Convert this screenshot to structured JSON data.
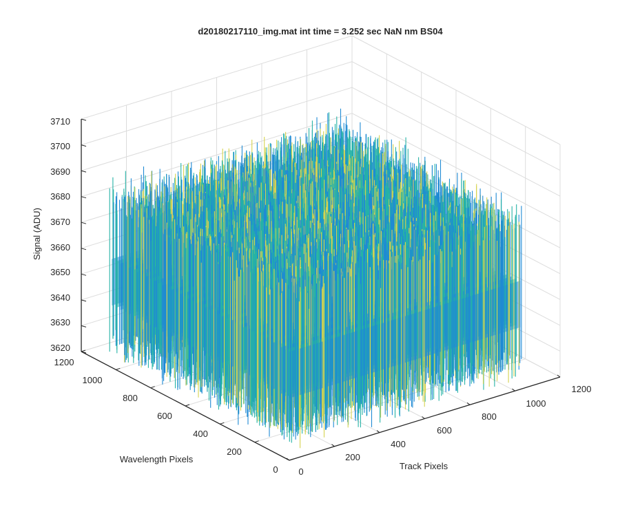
{
  "chart_data": {
    "type": "surface",
    "title": "d20180217110_img.mat int time = 3.252 sec  NaN nm BS04",
    "xlabel": "Track Pixels",
    "ylabel": "Wavelength Pixels",
    "zlabel": "Signal (ADU)",
    "xlim": [
      0,
      1200
    ],
    "ylim": [
      0,
      1200
    ],
    "zlim": [
      3620,
      3710
    ],
    "x_ticks": [
      "0",
      "200",
      "400",
      "600",
      "800",
      "1000",
      "1200"
    ],
    "y_ticks": [
      "0",
      "200",
      "400",
      "600",
      "800",
      "1000",
      "1200"
    ],
    "z_ticks": [
      "3620",
      "3630",
      "3640",
      "3650",
      "3660",
      "3670",
      "3680",
      "3690",
      "3700",
      "3710"
    ],
    "grid": true,
    "colormap": "parula",
    "data": {
      "x_range": [
        0,
        1024
      ],
      "y_range": [
        0,
        1024
      ],
      "mean_signal": 3652,
      "noise_band": [
        3630,
        3685
      ]
    },
    "colors": {
      "low": "#1f8ad4",
      "mid": "#25b3a6",
      "high": "#d6d350",
      "axis": "#262626",
      "grid": "#dcdcdc"
    }
  }
}
